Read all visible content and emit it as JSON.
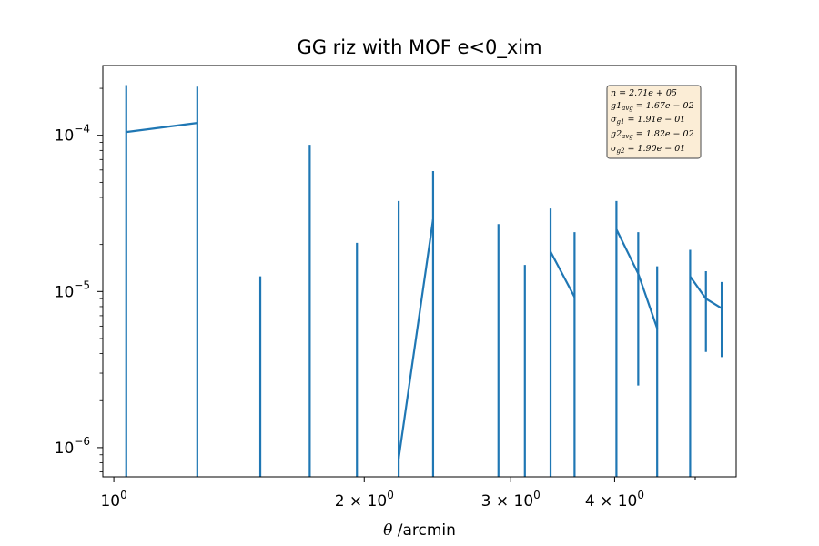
{
  "chart_data": {
    "type": "line",
    "title": "GG riz with MOF e<0_xim",
    "xlabel_symbol": "θ",
    "xlabel_unit": " /arcmin",
    "xscale": "log",
    "yscale": "log",
    "xlim": [
      0.97,
      5.6
    ],
    "ylim": [
      6.5e-07,
      0.00028
    ],
    "color": "#1f77b4",
    "x_ticks": [
      {
        "mant": "10",
        "exp": "0"
      },
      {
        "mant": "2 × 10",
        "exp": "0"
      },
      {
        "mant": "3 × 10",
        "exp": "0"
      },
      {
        "mant": "4 × 10",
        "exp": "0"
      }
    ],
    "y_ticks": [
      {
        "mant": "10",
        "exp": "−4"
      },
      {
        "mant": "10",
        "exp": "−5"
      },
      {
        "mant": "10",
        "exp": "−6"
      }
    ],
    "stats_box": {
      "lines": [
        "n = 2.71e + 05",
        "g1avg = 1.67e − 02",
        "σg1 = 1.91e − 01",
        "g2avg = 1.82e − 02",
        "σg2 = 1.90e − 01"
      ],
      "placement": "top-right",
      "facecolor": "#fbedd6"
    },
    "segments": [
      [
        {
          "x": 1.035,
          "y": 0.000105
        },
        {
          "x": 1.26,
          "y": 0.00012
        }
      ],
      [
        {
          "x": 2.2,
          "y": 8.5e-07
        },
        {
          "x": 2.42,
          "y": 2.9e-05
        }
      ],
      [
        {
          "x": 3.35,
          "y": 1.8e-05
        },
        {
          "x": 3.58,
          "y": 9.2e-06
        }
      ],
      [
        {
          "x": 4.02,
          "y": 2.5e-05
        },
        {
          "x": 4.27,
          "y": 1.3e-05
        },
        {
          "x": 4.5,
          "y": 5.8e-06
        }
      ],
      [
        {
          "x": 4.93,
          "y": 1.25e-05
        },
        {
          "x": 5.15,
          "y": 9e-06
        },
        {
          "x": 5.38,
          "y": 7.8e-06
        }
      ]
    ],
    "errorbars": [
      {
        "x": 1.035,
        "ylo": 6.5e-07,
        "yhi": 0.00021
      },
      {
        "x": 1.26,
        "ylo": 6.5e-07,
        "yhi": 0.000205
      },
      {
        "x": 1.5,
        "ylo": 6.5e-07,
        "yhi": 1.25e-05
      },
      {
        "x": 1.72,
        "ylo": 6.5e-07,
        "yhi": 8.7e-05
      },
      {
        "x": 1.96,
        "ylo": 6.5e-07,
        "yhi": 2.05e-05
      },
      {
        "x": 2.2,
        "ylo": 6.5e-07,
        "yhi": 3.8e-05
      },
      {
        "x": 2.42,
        "ylo": 6.5e-07,
        "yhi": 5.9e-05
      },
      {
        "x": 2.9,
        "ylo": 6.5e-07,
        "yhi": 2.7e-05
      },
      {
        "x": 3.12,
        "ylo": 6.5e-07,
        "yhi": 1.48e-05
      },
      {
        "x": 3.35,
        "ylo": 6.5e-07,
        "yhi": 3.4e-05
      },
      {
        "x": 3.58,
        "ylo": 6.5e-07,
        "yhi": 2.4e-05
      },
      {
        "x": 4.02,
        "ylo": 6.5e-07,
        "yhi": 3.8e-05
      },
      {
        "x": 4.27,
        "ylo": 2.5e-06,
        "yhi": 2.4e-05
      },
      {
        "x": 4.5,
        "ylo": 6.5e-07,
        "yhi": 1.45e-05
      },
      {
        "x": 4.93,
        "ylo": 6.5e-07,
        "yhi": 1.85e-05
      },
      {
        "x": 5.15,
        "ylo": 4.1e-06,
        "yhi": 1.35e-05
      },
      {
        "x": 5.38,
        "ylo": 3.8e-06,
        "yhi": 1.15e-05
      }
    ]
  }
}
